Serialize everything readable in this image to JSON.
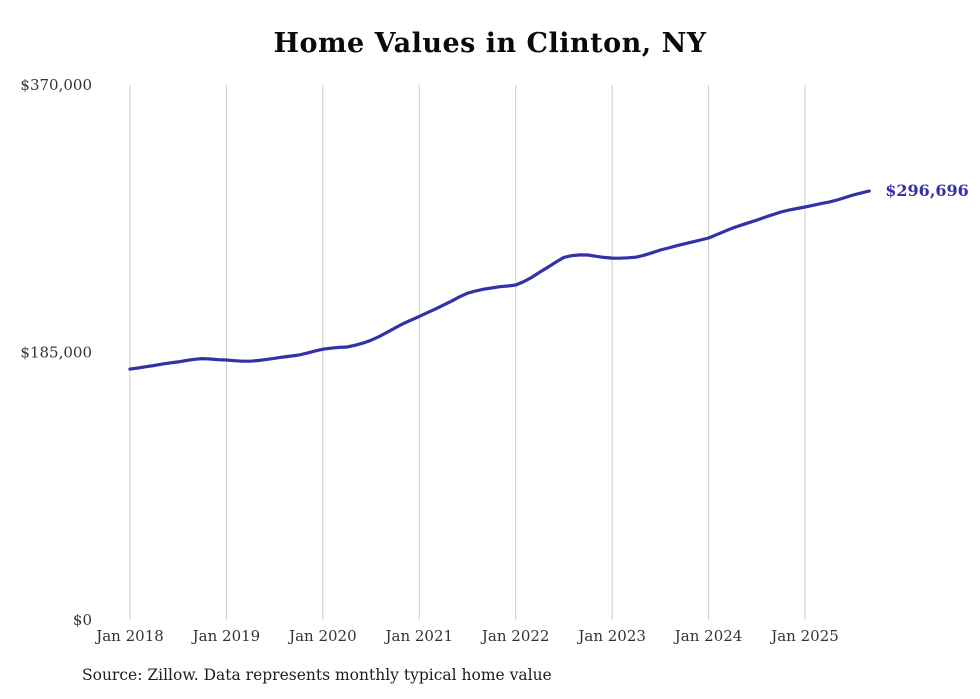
{
  "chart": {
    "title": "Home Values in Clinton, NY",
    "source": "Source: Zillow. Data represents monthly typical home value",
    "line_color": "#3431a8",
    "grid_color": "#cccccc"
  },
  "chart_data": {
    "type": "line",
    "title": "Home Values in Clinton, NY",
    "series_name": "Monthly typical home value",
    "grid": "vertical-only",
    "legend": false,
    "ylim": [
      0,
      370000
    ],
    "y_ticks": [
      {
        "value": 0,
        "label": "$0"
      },
      {
        "value": 185000,
        "label": "$185,000"
      },
      {
        "value": 370000,
        "label": "$370,000"
      }
    ],
    "x_ticks": [
      {
        "month_index": 0,
        "label": "Jan 2018"
      },
      {
        "month_index": 12,
        "label": "Jan 2019"
      },
      {
        "month_index": 24,
        "label": "Jan 2020"
      },
      {
        "month_index": 36,
        "label": "Jan 2021"
      },
      {
        "month_index": 48,
        "label": "Jan 2022"
      },
      {
        "month_index": 60,
        "label": "Jan 2023"
      },
      {
        "month_index": 72,
        "label": "Jan 2024"
      },
      {
        "month_index": 84,
        "label": "Jan 2025"
      }
    ],
    "x": [
      "2018-01",
      "2018-02",
      "2018-03",
      "2018-04",
      "2018-05",
      "2018-06",
      "2018-07",
      "2018-08",
      "2018-09",
      "2018-10",
      "2018-11",
      "2018-12",
      "2019-01",
      "2019-02",
      "2019-03",
      "2019-04",
      "2019-05",
      "2019-06",
      "2019-07",
      "2019-08",
      "2019-09",
      "2019-10",
      "2019-11",
      "2019-12",
      "2020-01",
      "2020-02",
      "2020-03",
      "2020-04",
      "2020-05",
      "2020-06",
      "2020-07",
      "2020-08",
      "2020-09",
      "2020-10",
      "2020-11",
      "2020-12",
      "2021-01",
      "2021-02",
      "2021-03",
      "2021-04",
      "2021-05",
      "2021-06",
      "2021-07",
      "2021-08",
      "2021-09",
      "2021-10",
      "2021-11",
      "2021-12",
      "2022-01",
      "2022-02",
      "2022-03",
      "2022-04",
      "2022-05",
      "2022-06",
      "2022-07",
      "2022-08",
      "2022-09",
      "2022-10",
      "2022-11",
      "2022-12",
      "2023-01",
      "2023-02",
      "2023-03",
      "2023-04",
      "2023-05",
      "2023-06",
      "2023-07",
      "2023-08",
      "2023-09",
      "2023-10",
      "2023-11",
      "2023-12",
      "2024-01",
      "2024-02",
      "2024-03",
      "2024-04",
      "2024-05",
      "2024-06",
      "2024-07",
      "2024-08",
      "2024-09",
      "2024-10",
      "2024-11",
      "2024-12",
      "2025-01",
      "2025-02",
      "2025-03",
      "2025-04",
      "2025-05",
      "2025-06",
      "2025-07",
      "2025-08",
      "2025-09"
    ],
    "values": [
      173500,
      174300,
      175200,
      176000,
      177000,
      177800,
      178500,
      179500,
      180300,
      180800,
      180500,
      180000,
      179800,
      179300,
      179000,
      179000,
      179500,
      180200,
      181000,
      181800,
      182500,
      183300,
      184500,
      186000,
      187300,
      188000,
      188500,
      188800,
      190000,
      191500,
      193500,
      196000,
      199000,
      202000,
      205000,
      207500,
      210000,
      212500,
      215000,
      217800,
      220500,
      223500,
      226000,
      227500,
      228800,
      229600,
      230500,
      231000,
      231700,
      234000,
      237000,
      240600,
      244000,
      247500,
      250800,
      252000,
      252500,
      252400,
      251500,
      250800,
      250300,
      250200,
      250500,
      251000,
      252300,
      254000,
      255900,
      257300,
      258800,
      260200,
      261500,
      262800,
      264200,
      266500,
      268800,
      271100,
      273000,
      274800,
      276600,
      278500,
      280400,
      282200,
      283500,
      284600,
      285600,
      286800,
      288000,
      289000,
      290500,
      292200,
      293900,
      295400,
      296696
    ],
    "annotation": {
      "label": "$296,696",
      "value": 296696
    }
  }
}
